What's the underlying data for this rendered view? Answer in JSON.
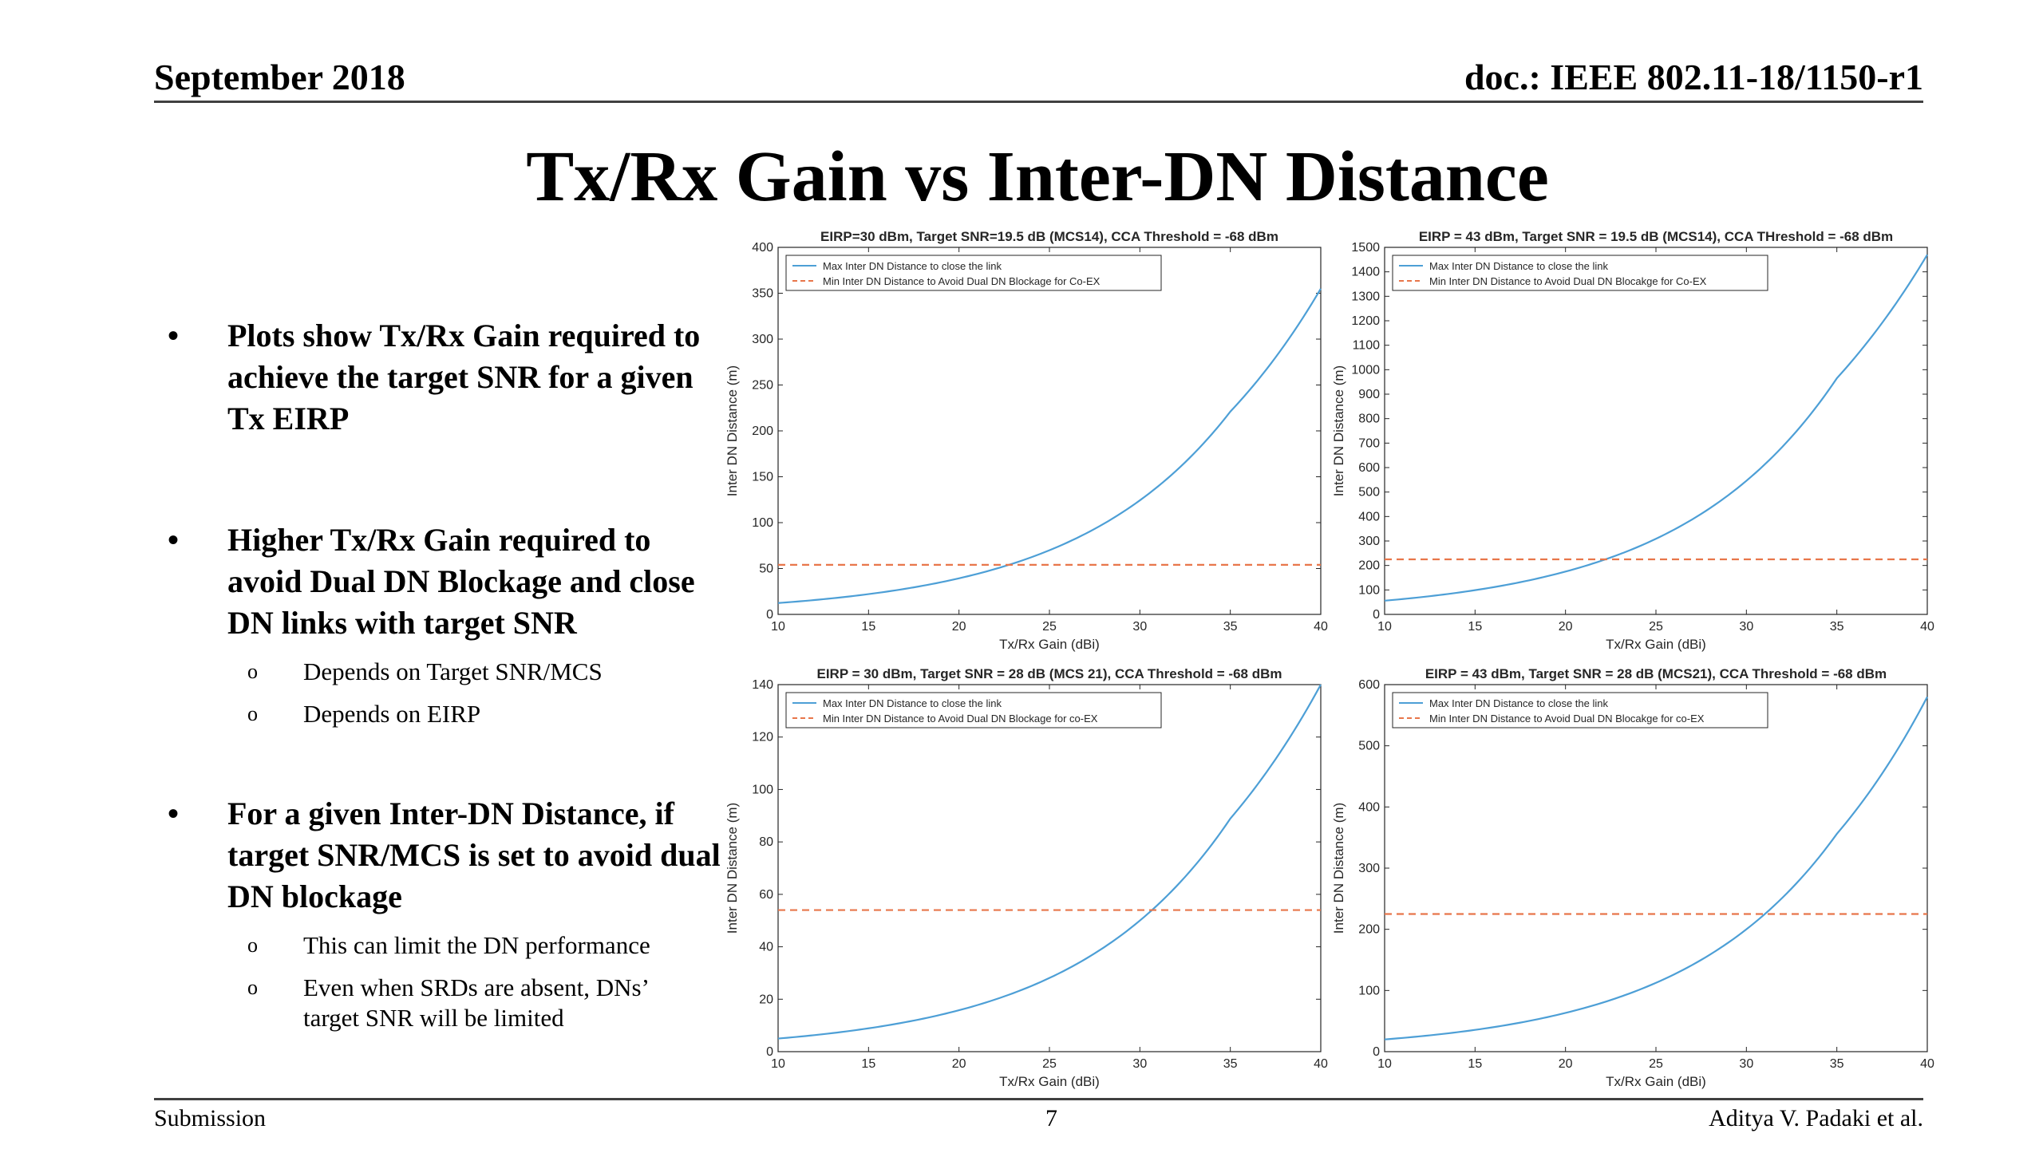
{
  "header": {
    "date": "September 2018",
    "doc_id": "doc.: IEEE 802.11-18/1150-r1"
  },
  "title": "Tx/Rx Gain vs Inter-DN Distance",
  "bullets": {
    "b1": "Plots show Tx/Rx Gain required to achieve the target SNR for a given Tx EIRP",
    "b2": "Higher Tx/Rx Gain required to avoid Dual DN Blockage and close DN links with target SNR",
    "b2_sub1": "Depends on Target SNR/MCS",
    "b2_sub2": "Depends on EIRP",
    "b3": "For a given Inter-DN Distance, if target SNR/MCS is set to avoid dual DN blockage",
    "b3_sub1": "This can limit the DN performance",
    "b3_sub2": "Even when SRDs are absent, DNs’ target SNR will be limited"
  },
  "footer": {
    "left": "Submission",
    "page": "7",
    "author": "Aditya V. Padaki et al."
  },
  "colors": {
    "max_line": "#4d9fd6",
    "min_line": "#e8764a"
  },
  "chart_data": [
    {
      "type": "line",
      "title": "EIRP=30 dBm, Target SNR=19.5 dB (MCS14), CCA Threshold = -68 dBm",
      "xlabel": "Tx/Rx Gain (dBi)",
      "ylabel": "Inter DN Distance (m)",
      "xlim": [
        10,
        40
      ],
      "ylim": [
        0,
        400
      ],
      "xticks": [
        10,
        15,
        20,
        25,
        30,
        35,
        40
      ],
      "yticks": [
        0,
        50,
        100,
        150,
        200,
        250,
        300,
        350,
        400
      ],
      "legend": "top-left",
      "series": [
        {
          "name": "Max Inter DN Distance to close the link",
          "style": "solid",
          "x": [
            10,
            15,
            20,
            25,
            30,
            35,
            40
          ],
          "y": [
            12.4,
            22.1,
            39.3,
            69.9,
            124.3,
            221,
            355
          ]
        },
        {
          "name": "Min Inter DN Distance to Avoid Dual DN Blockage for Co-EX",
          "style": "dashed",
          "x": [
            10,
            40
          ],
          "y": [
            54,
            54
          ]
        }
      ]
    },
    {
      "type": "line",
      "title": "EIRP = 43 dBm, Target SNR  = 19.5 dB (MCS14), CCA THreshold = -68 dBm",
      "xlabel": "Tx/Rx Gain (dBi)",
      "ylabel": "Inter DN Distance (m)",
      "xlim": [
        10,
        40
      ],
      "ylim": [
        0,
        1500
      ],
      "xticks": [
        10,
        15,
        20,
        25,
        30,
        35,
        40
      ],
      "yticks": [
        0,
        100,
        200,
        300,
        400,
        500,
        600,
        700,
        800,
        900,
        1000,
        1100,
        1200,
        1300,
        1400,
        1500
      ],
      "legend": "top-left",
      "series": [
        {
          "name": "Max Inter DN Distance to close the link",
          "style": "solid",
          "x": [
            10,
            15,
            20,
            25,
            30,
            35,
            40
          ],
          "y": [
            56,
            99,
            175,
            309,
            546,
            965,
            1470
          ]
        },
        {
          "name": "Min Inter DN Distance to Avoid Dual DN Blocakge for Co-EX",
          "style": "dashed",
          "x": [
            10,
            40
          ],
          "y": [
            225,
            225
          ]
        }
      ]
    },
    {
      "type": "line",
      "title": "EIRP = 30 dBm, Target SNR = 28 dB (MCS 21), CCA Threshold = -68 dBm",
      "xlabel": "Tx/Rx Gain (dBi)",
      "ylabel": "Inter DN Distance (m)",
      "xlim": [
        10,
        40
      ],
      "ylim": [
        0,
        140
      ],
      "xticks": [
        10,
        15,
        20,
        25,
        30,
        35,
        40
      ],
      "yticks": [
        0,
        20,
        40,
        60,
        80,
        100,
        120,
        140
      ],
      "legend": "top-left",
      "series": [
        {
          "name": "Max Inter DN Distance to close the link",
          "style": "solid",
          "x": [
            10,
            15,
            20,
            25,
            30,
            35,
            40
          ],
          "y": [
            5,
            8.9,
            15.8,
            28.1,
            50,
            88.9,
            140
          ]
        },
        {
          "name": "Min Inter DN Distance to Avoid Dual DN Blockage for co-EX",
          "style": "dashed",
          "x": [
            10,
            40
          ],
          "y": [
            54,
            54
          ]
        }
      ]
    },
    {
      "type": "line",
      "title": "EIRP = 43 dBm, Target SNR = 28 dB (MCS21), CCA Threshold = -68 dBm",
      "xlabel": "Tx/Rx Gain (dBi)",
      "ylabel": "Inter DN Distance (m)",
      "xlim": [
        10,
        40
      ],
      "ylim": [
        0,
        600
      ],
      "xticks": [
        10,
        15,
        20,
        25,
        30,
        35,
        40
      ],
      "yticks": [
        0,
        100,
        200,
        300,
        400,
        500,
        600
      ],
      "legend": "top-left",
      "series": [
        {
          "name": "Max Inter DN Distance to close the link",
          "style": "solid",
          "x": [
            10,
            15,
            20,
            25,
            30,
            35,
            40
          ],
          "y": [
            20,
            35.6,
            63.3,
            112.5,
            200,
            356,
            580
          ]
        },
        {
          "name": "Min Inter DN Distance to Avoid Dual DN Blocakge for co-EX",
          "style": "dashed",
          "x": [
            10,
            40
          ],
          "y": [
            225,
            225
          ]
        }
      ]
    }
  ]
}
